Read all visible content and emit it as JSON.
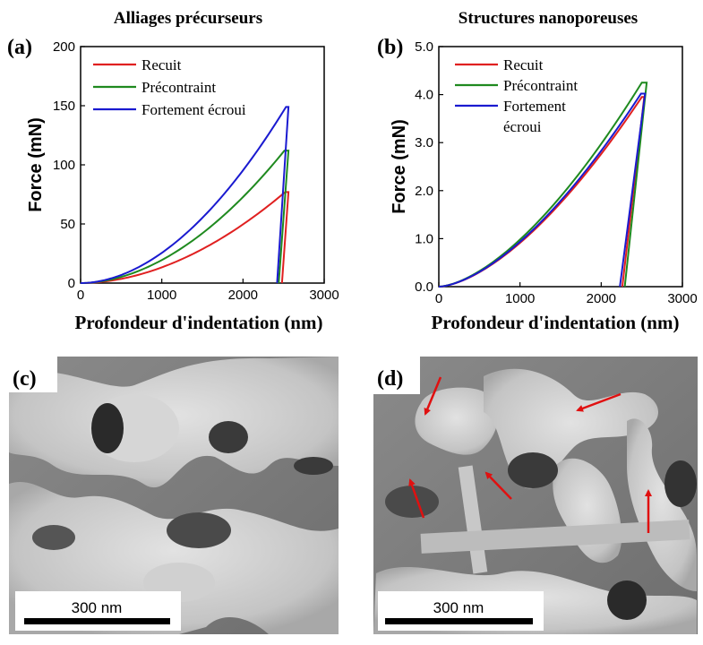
{
  "chart_data": [
    {
      "type": "line",
      "panel": "(a)",
      "title": "Alliages précurseurs",
      "xlabel": "Profondeur d'indentation (nm)",
      "ylabel": "Force (mN)",
      "xlim": [
        0,
        3000
      ],
      "ylim": [
        0,
        200
      ],
      "xticks": [
        "0",
        "1000",
        "2000",
        "3000"
      ],
      "yticks": [
        "0",
        "50",
        "100",
        "150",
        "200"
      ],
      "legend": "top-left",
      "series": [
        {
          "name": "Recuit",
          "color": "#e02020",
          "loading_exponent": 1.9,
          "x": [
            0,
            2520,
            2560,
            2480
          ],
          "y": [
            0,
            77,
            77,
            0
          ]
        },
        {
          "name": "Précontraint",
          "color": "#1f8a1f",
          "loading_exponent": 1.9,
          "x": [
            0,
            2510,
            2560,
            2440
          ],
          "y": [
            0,
            112,
            112,
            0
          ]
        },
        {
          "name": "Fortement écroui",
          "color": "#1a1ad0",
          "loading_exponent": 1.9,
          "x": [
            0,
            2530,
            2560,
            2420
          ],
          "y": [
            0,
            149,
            149,
            0
          ]
        }
      ]
    },
    {
      "type": "line",
      "panel": "(b)",
      "title": "Structures nanoporeuses",
      "xlabel": "Profondeur d'indentation (nm)",
      "ylabel": "Force (mN)",
      "xlim": [
        0,
        3000
      ],
      "ylim": [
        0,
        5
      ],
      "xticks": [
        "0",
        "1000",
        "2000",
        "3000"
      ],
      "yticks": [
        "0.0",
        "1.0",
        "2.0",
        "3.0",
        "4.0",
        "5.0"
      ],
      "legend": "top-left",
      "series": [
        {
          "name": "Recuit",
          "color": "#e02020",
          "loading_exponent": 1.6,
          "x": [
            0,
            2500,
            2530,
            2260
          ],
          "y": [
            0,
            3.95,
            3.95,
            0
          ]
        },
        {
          "name": "Précontraint",
          "color": "#1f8a1f",
          "loading_exponent": 1.6,
          "x": [
            0,
            2500,
            2560,
            2290
          ],
          "y": [
            0,
            4.25,
            4.25,
            0
          ]
        },
        {
          "name": "Fortement écroui",
          "color": "#1a1ad0",
          "loading_exponent": 1.6,
          "x": [
            0,
            2490,
            2540,
            2230
          ],
          "y": [
            0,
            4.02,
            4.02,
            0
          ]
        }
      ]
    }
  ],
  "legend_b_labels": [
    "Recuit",
    "Précontraint",
    "Fortement",
    "écroui"
  ],
  "images": [
    {
      "panel": "(c)",
      "scale_bar": "300 nm"
    },
    {
      "panel": "(d)",
      "scale_bar": "300 nm",
      "arrow_color": "#e01010"
    }
  ]
}
